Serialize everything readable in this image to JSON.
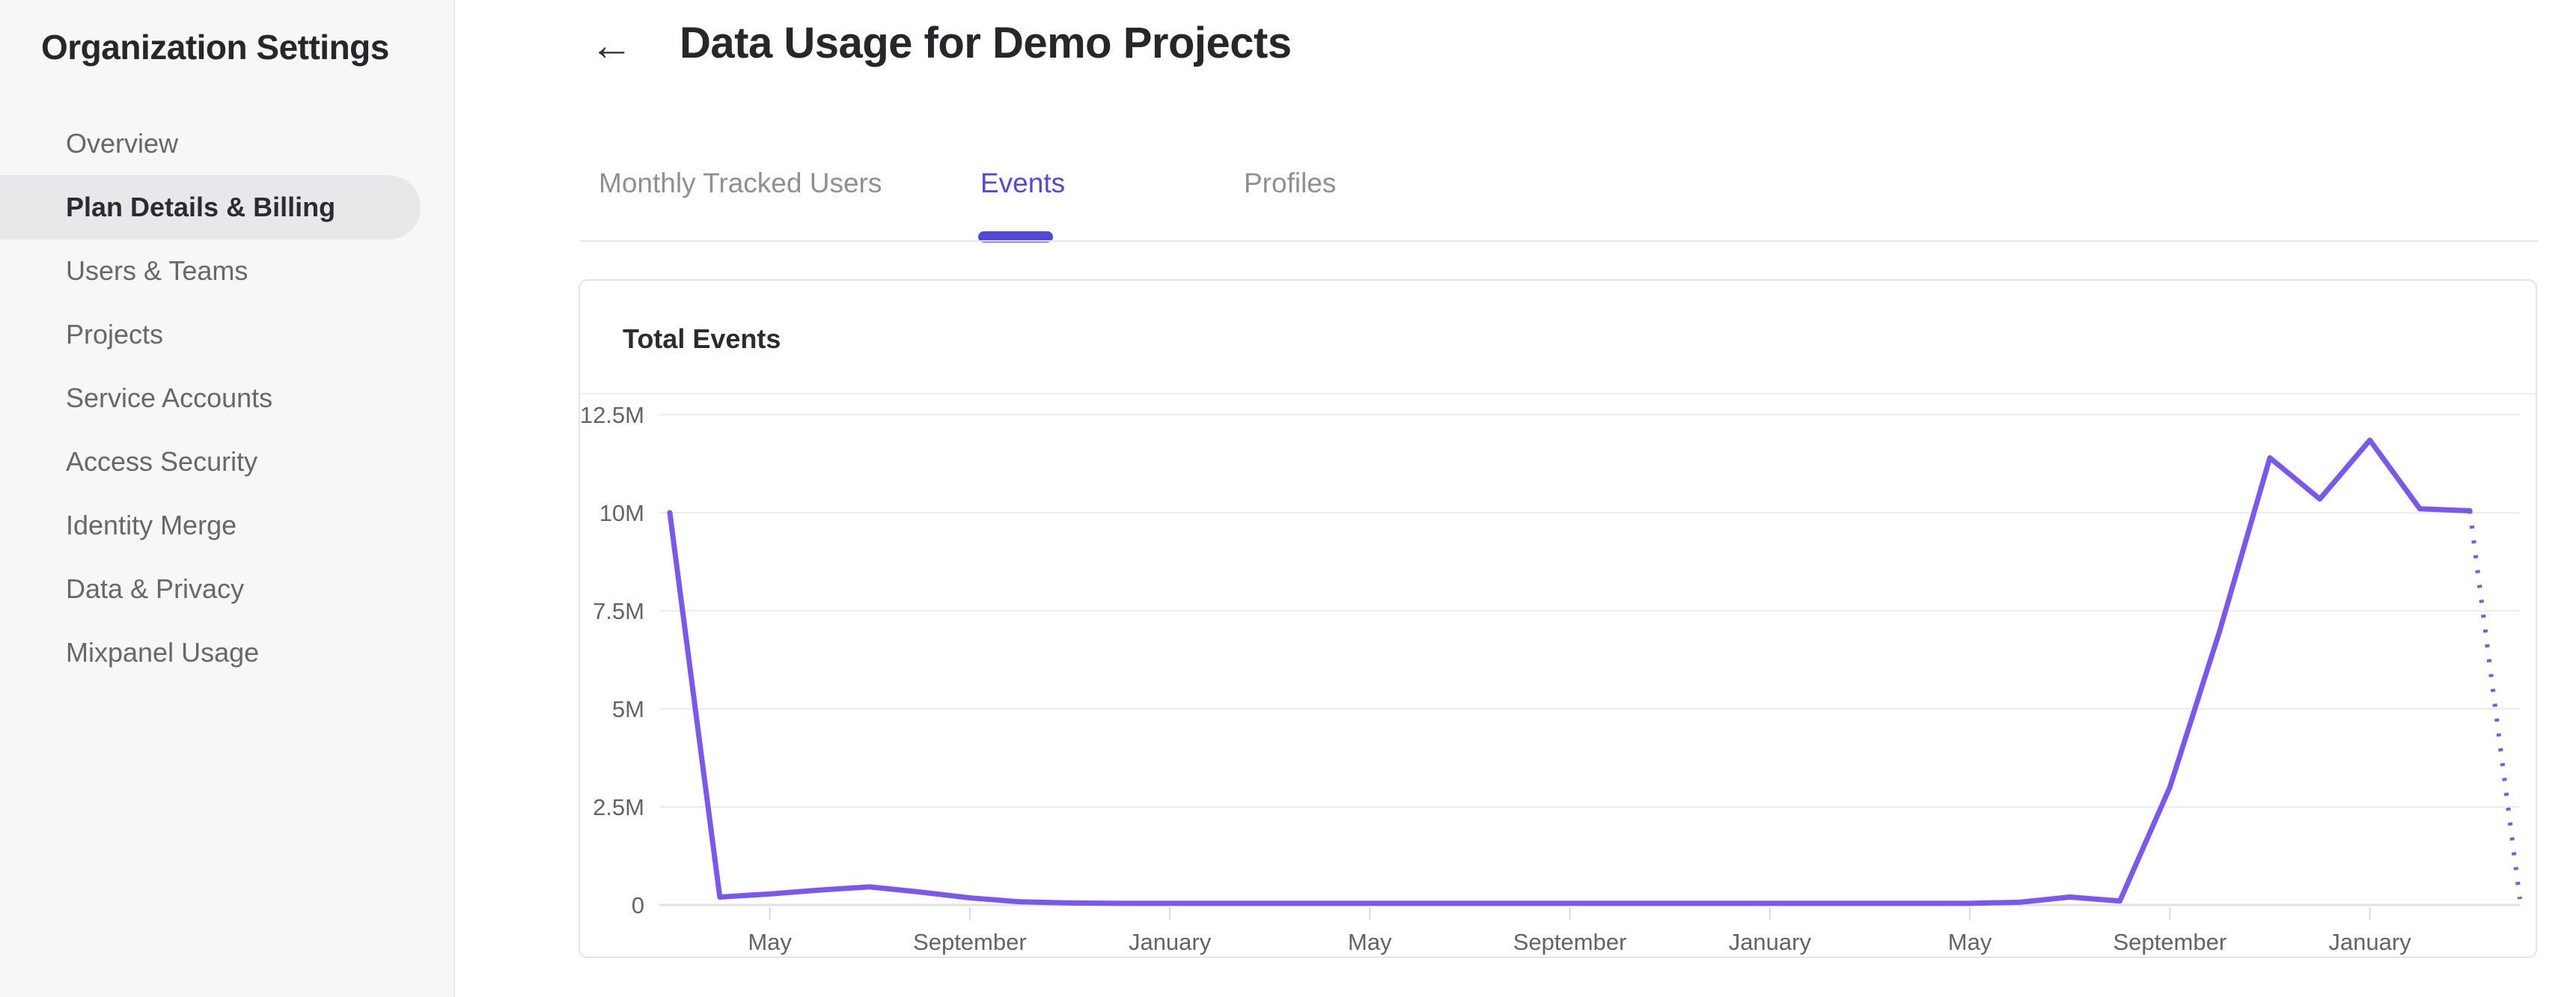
{
  "sidebar": {
    "title": "Organization Settings",
    "items": [
      {
        "label": "Overview",
        "active": false
      },
      {
        "label": "Plan Details & Billing",
        "active": true
      },
      {
        "label": "Users & Teams",
        "active": false
      },
      {
        "label": "Projects",
        "active": false
      },
      {
        "label": "Service Accounts",
        "active": false
      },
      {
        "label": "Access Security",
        "active": false
      },
      {
        "label": "Identity Merge",
        "active": false
      },
      {
        "label": "Data & Privacy",
        "active": false
      },
      {
        "label": "Mixpanel Usage",
        "active": false
      }
    ]
  },
  "header": {
    "back_icon": "←",
    "title": "Data Usage for Demo Projects"
  },
  "tabs": [
    {
      "label": "Monthly Tracked Users",
      "active": false
    },
    {
      "label": "Events",
      "active": true
    },
    {
      "label": "Profiles",
      "active": false
    }
  ],
  "card": {
    "title": "Total Events"
  },
  "colors": {
    "accent": "#5347dd",
    "chart_line": "#7a58f0",
    "sidebar_bg": "#f7f7f8",
    "active_pill_bg": "#e8e8ea",
    "gridline": "#ededef",
    "axis_text": "#636369"
  },
  "chart_data": {
    "type": "line",
    "title": "Total Events",
    "y_unit": "events",
    "ylim_millions": [
      0,
      12.5
    ],
    "grid": true,
    "legend": "none",
    "line_color": "#7a58f0",
    "y_ticks": [
      {
        "label": "12.5M",
        "value_millions": 12.5
      },
      {
        "label": "10M",
        "value_millions": 10
      },
      {
        "label": "7.5M",
        "value_millions": 7.5
      },
      {
        "label": "5M",
        "value_millions": 5
      },
      {
        "label": "2.5M",
        "value_millions": 2.5
      },
      {
        "label": "0",
        "value_millions": 0
      }
    ],
    "x_ticks": [
      {
        "label": "May",
        "point_index": 2
      },
      {
        "label": "September",
        "point_index": 6
      },
      {
        "label": "January",
        "point_index": 10
      },
      {
        "label": "May",
        "point_index": 14
      },
      {
        "label": "September",
        "point_index": 18
      },
      {
        "label": "January",
        "point_index": 22
      },
      {
        "label": "May",
        "point_index": 26
      },
      {
        "label": "September",
        "point_index": 30
      },
      {
        "label": "January",
        "point_index": 34
      }
    ],
    "series": [
      {
        "name": "Total Events",
        "style": "solid",
        "values_millions": [
          10,
          0.2,
          0.28,
          0.38,
          0.46,
          0.33,
          0.18,
          0.08,
          0.05,
          0.04,
          0.04,
          0.04,
          0.04,
          0.04,
          0.04,
          0.04,
          0.04,
          0.04,
          0.04,
          0.04,
          0.04,
          0.04,
          0.04,
          0.04,
          0.04,
          0.04,
          0.04,
          0.07,
          0.2,
          0.1,
          3.0,
          7.0,
          11.4,
          10.35,
          11.85,
          10.1,
          10.05
        ]
      }
    ],
    "projection": {
      "style": "dotted",
      "start_point_index": 36,
      "values_millions": [
        10.05,
        0.15
      ]
    }
  }
}
